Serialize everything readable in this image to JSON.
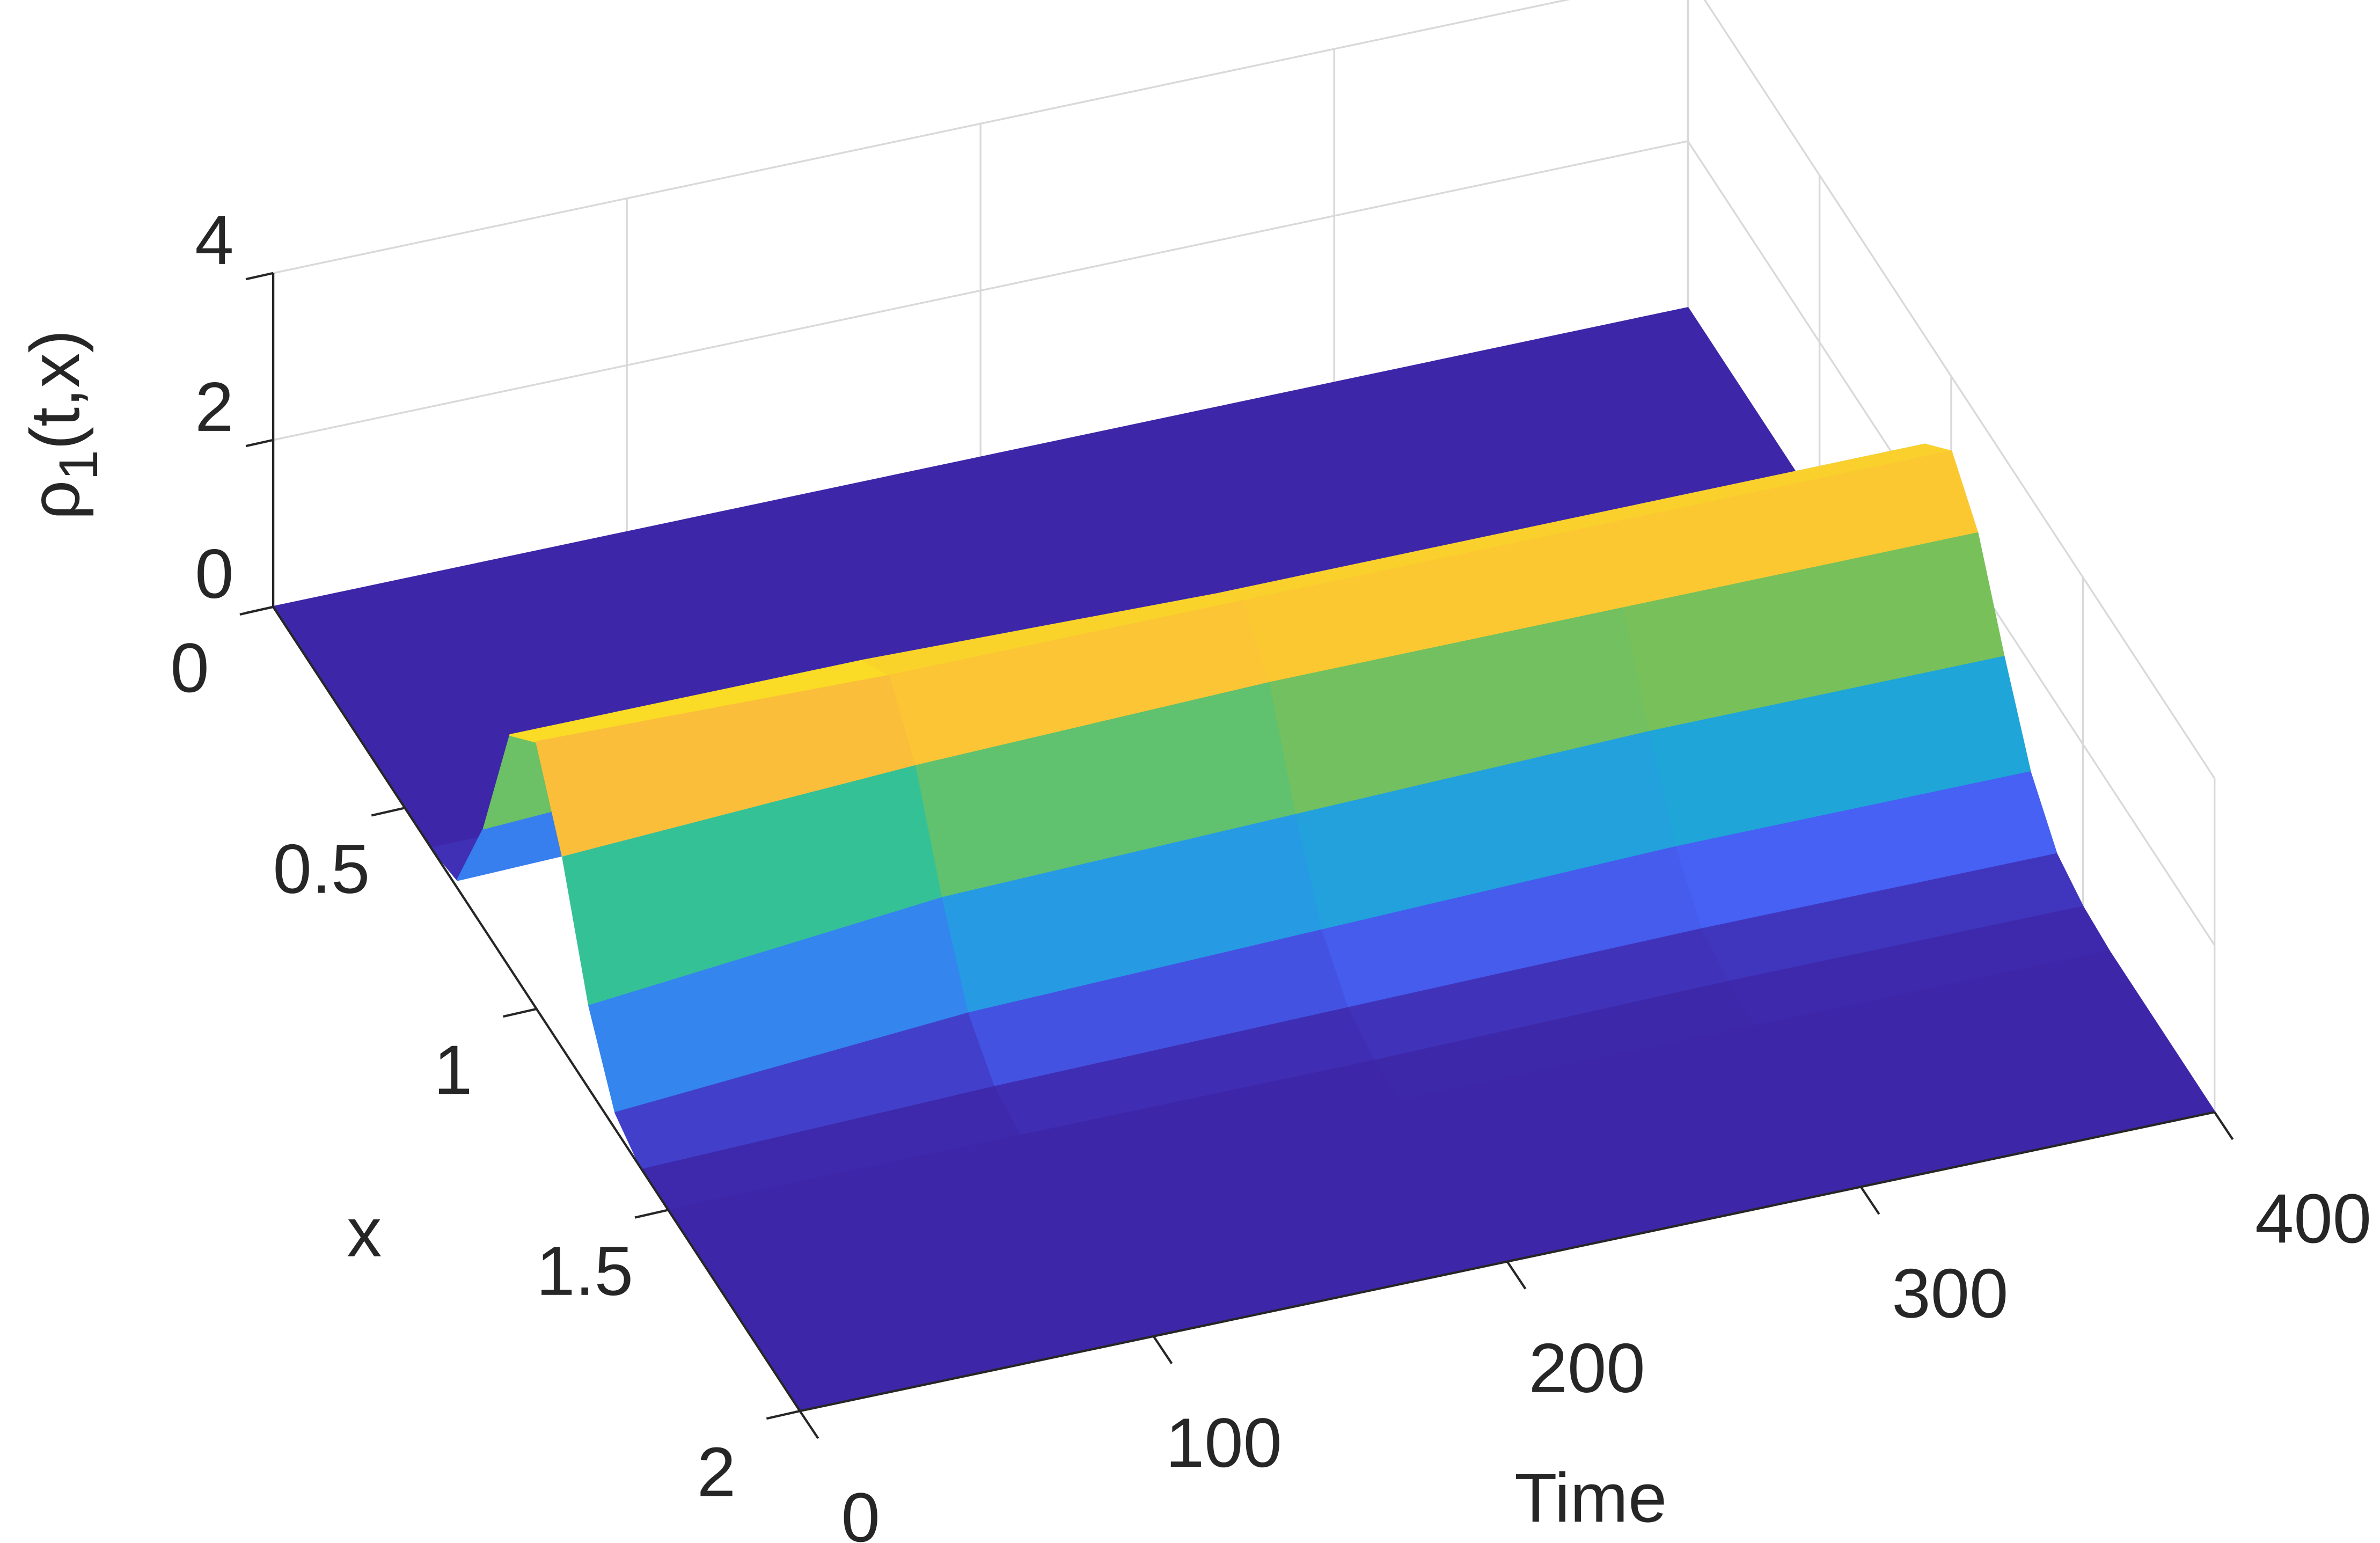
{
  "chart_data": {
    "type": "surface",
    "xlabel": "Time",
    "ylabel": "x",
    "zlabel": {
      "symbol": "ρ",
      "subscript": "1",
      "rest": "(t,x)"
    },
    "time": [
      0,
      100,
      200,
      300,
      400
    ],
    "x": [
      0,
      0.1,
      0.2,
      0.3,
      0.4,
      0.5,
      0.6,
      0.7,
      0.8,
      0.9,
      1,
      1.1,
      1.2,
      1.3,
      1.4,
      1.5,
      1.6,
      1.7,
      1.8,
      1.9,
      2
    ],
    "z": [
      [
        0,
        0,
        0,
        0,
        0,
        0,
        0,
        0.1,
        1.2,
        2.8,
        3.2,
        2.3,
        1.0,
        0.2,
        0,
        0,
        0,
        0,
        0,
        0,
        0
      ],
      [
        0,
        0,
        0,
        0,
        0,
        0,
        0,
        0.2,
        1.4,
        2.8,
        3.1,
        2.5,
        1.4,
        0.5,
        0.1,
        0,
        0,
        0,
        0,
        0,
        0
      ],
      [
        0,
        0,
        0,
        0,
        0,
        0,
        0,
        0.2,
        1.4,
        2.7,
        3.1,
        2.6,
        1.5,
        0.6,
        0.15,
        0,
        0,
        0,
        0,
        0,
        0
      ],
      [
        0,
        0,
        0,
        0,
        0,
        0,
        0,
        0.3,
        1.5,
        2.7,
        3.1,
        2.6,
        1.6,
        0.7,
        0.2,
        0.05,
        0,
        0,
        0,
        0,
        0
      ],
      [
        0,
        0,
        0,
        0,
        0,
        0,
        0,
        0.3,
        1.5,
        2.7,
        3.1,
        2.6,
        1.6,
        0.7,
        0.2,
        0.05,
        0,
        0,
        0,
        0,
        0
      ]
    ],
    "xlim": [
      0,
      400
    ],
    "xticks": [
      0,
      100,
      200,
      300,
      400
    ],
    "ylim": [
      0,
      2
    ],
    "yticks": [
      0,
      0.5,
      1,
      1.5,
      2
    ],
    "zlim": [
      0,
      4
    ],
    "zticks": [
      0,
      2,
      4
    ],
    "grid": true,
    "colormap": [
      "#3e26a8",
      "#4662f5",
      "#2c94eb",
      "#13b5c7",
      "#37c293",
      "#a5be33",
      "#fbb93d",
      "#f9fb0e"
    ]
  }
}
